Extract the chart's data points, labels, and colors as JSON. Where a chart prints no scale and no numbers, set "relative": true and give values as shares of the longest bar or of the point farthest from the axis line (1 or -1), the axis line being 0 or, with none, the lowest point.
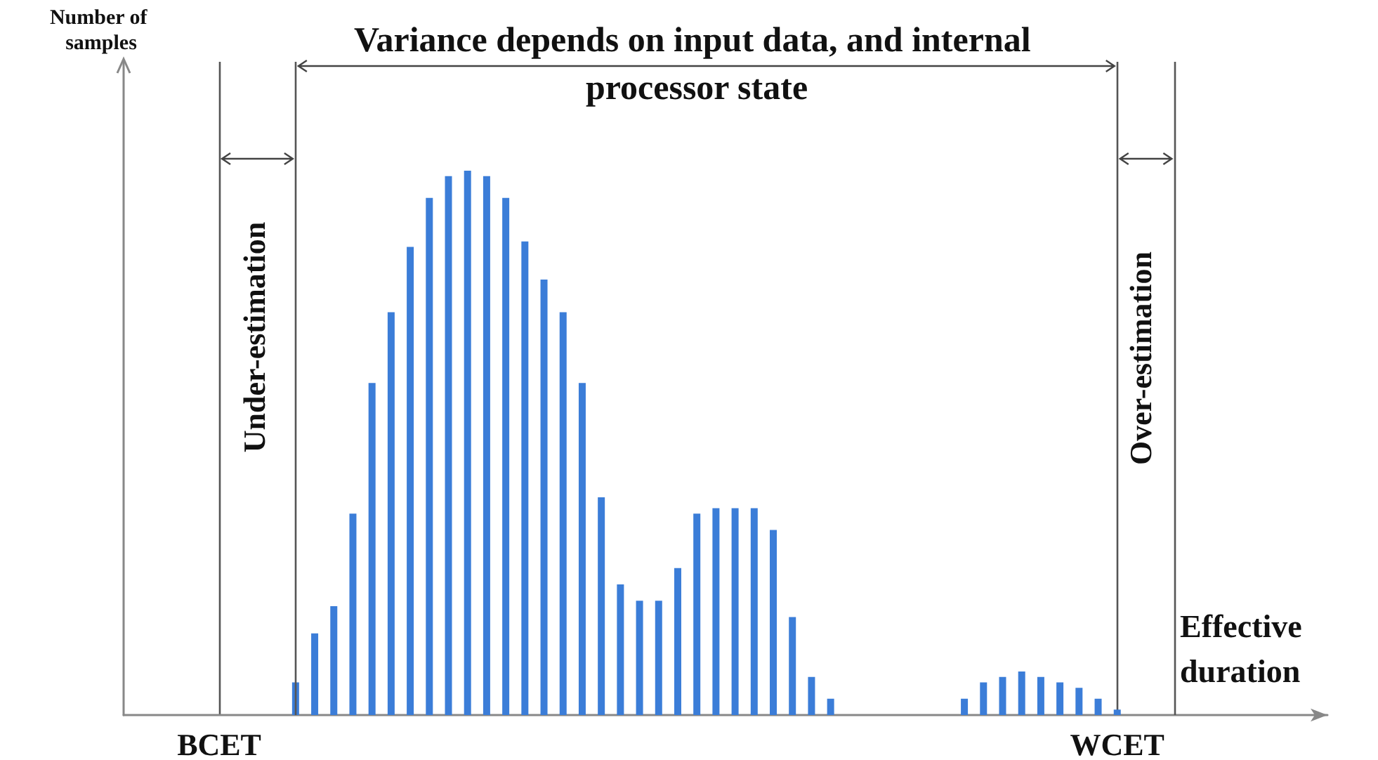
{
  "chart_data": {
    "type": "bar",
    "relative": true,
    "xlabel": "Effective duration",
    "categories": [
      null,
      null,
      null,
      null,
      null,
      "BCET",
      null,
      null,
      null,
      null,
      null,
      null,
      null,
      null,
      null,
      null,
      null,
      null,
      null,
      null,
      null,
      null,
      null,
      null,
      null,
      null,
      null,
      null,
      null,
      null,
      null,
      null,
      null,
      null,
      null,
      null,
      null,
      null,
      null,
      null,
      null,
      null,
      null,
      null,
      null,
      null,
      null,
      null,
      null,
      null,
      null,
      null,
      "WCET",
      null,
      null,
      null,
      null,
      null,
      null,
      null,
      null,
      null,
      null,
      null
    ],
    "values": [
      null,
      null,
      null,
      null,
      null,
      null,
      null,
      null,
      null,
      0.06,
      0.15,
      0.2,
      0.37,
      0.61,
      0.74,
      0.86,
      0.95,
      0.99,
      1,
      0.99,
      0.95,
      0.87,
      0.8,
      0.74,
      0.61,
      0.4,
      0.24,
      0.21,
      0.21,
      0.27,
      0.37,
      0.38,
      0.38,
      0.38,
      0.34,
      0.18,
      0.07,
      0.03,
      null,
      null,
      null,
      null,
      null,
      null,
      0.03,
      0.06,
      0.07,
      0.08,
      0.07,
      0.06,
      0.05,
      0.03,
      0.01,
      null,
      null,
      null,
      null,
      null,
      null,
      null,
      null,
      null,
      null,
      null
    ],
    "color": "#3b7dd8",
    "grid": "x",
    "annotations": [
      "Variance depends on input data, and internal processor state",
      "Under-estimation",
      "Over-estimation",
      "Number of samples"
    ]
  }
}
